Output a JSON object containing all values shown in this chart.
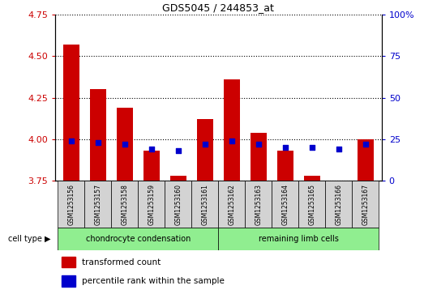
{
  "title": "GDS5045 / 244853_at",
  "samples": [
    "GSM1253156",
    "GSM1253157",
    "GSM1253158",
    "GSM1253159",
    "GSM1253160",
    "GSM1253161",
    "GSM1253162",
    "GSM1253163",
    "GSM1253164",
    "GSM1253165",
    "GSM1253166",
    "GSM1253167"
  ],
  "red_values": [
    4.57,
    4.3,
    4.19,
    3.93,
    3.78,
    4.12,
    4.36,
    4.04,
    3.93,
    3.78,
    3.74,
    4.0
  ],
  "blue_values": [
    24,
    23,
    22,
    19,
    18,
    22,
    24,
    22,
    20,
    20,
    19,
    22
  ],
  "ylim_left": [
    3.75,
    4.75
  ],
  "ylim_right": [
    0,
    100
  ],
  "yticks_left": [
    3.75,
    4.0,
    4.25,
    4.5,
    4.75
  ],
  "yticks_right": [
    0,
    25,
    50,
    75,
    100
  ],
  "yticks_right_labels": [
    "0",
    "25",
    "50",
    "75",
    "100%"
  ],
  "bar_color": "#cc0000",
  "dot_color": "#0000cc",
  "bar_bottom": 3.75,
  "left_axis_color": "#cc0000",
  "right_axis_color": "#0000cc",
  "bar_width": 0.6,
  "legend_tc": "transformed count",
  "legend_pr": "percentile rank within the sample",
  "cell_type_label": "cell type",
  "group1_label": "chondrocyte condensation",
  "group2_label": "remaining limb cells",
  "group_color": "#90ee90",
  "sample_box_color": "#d3d3d3"
}
